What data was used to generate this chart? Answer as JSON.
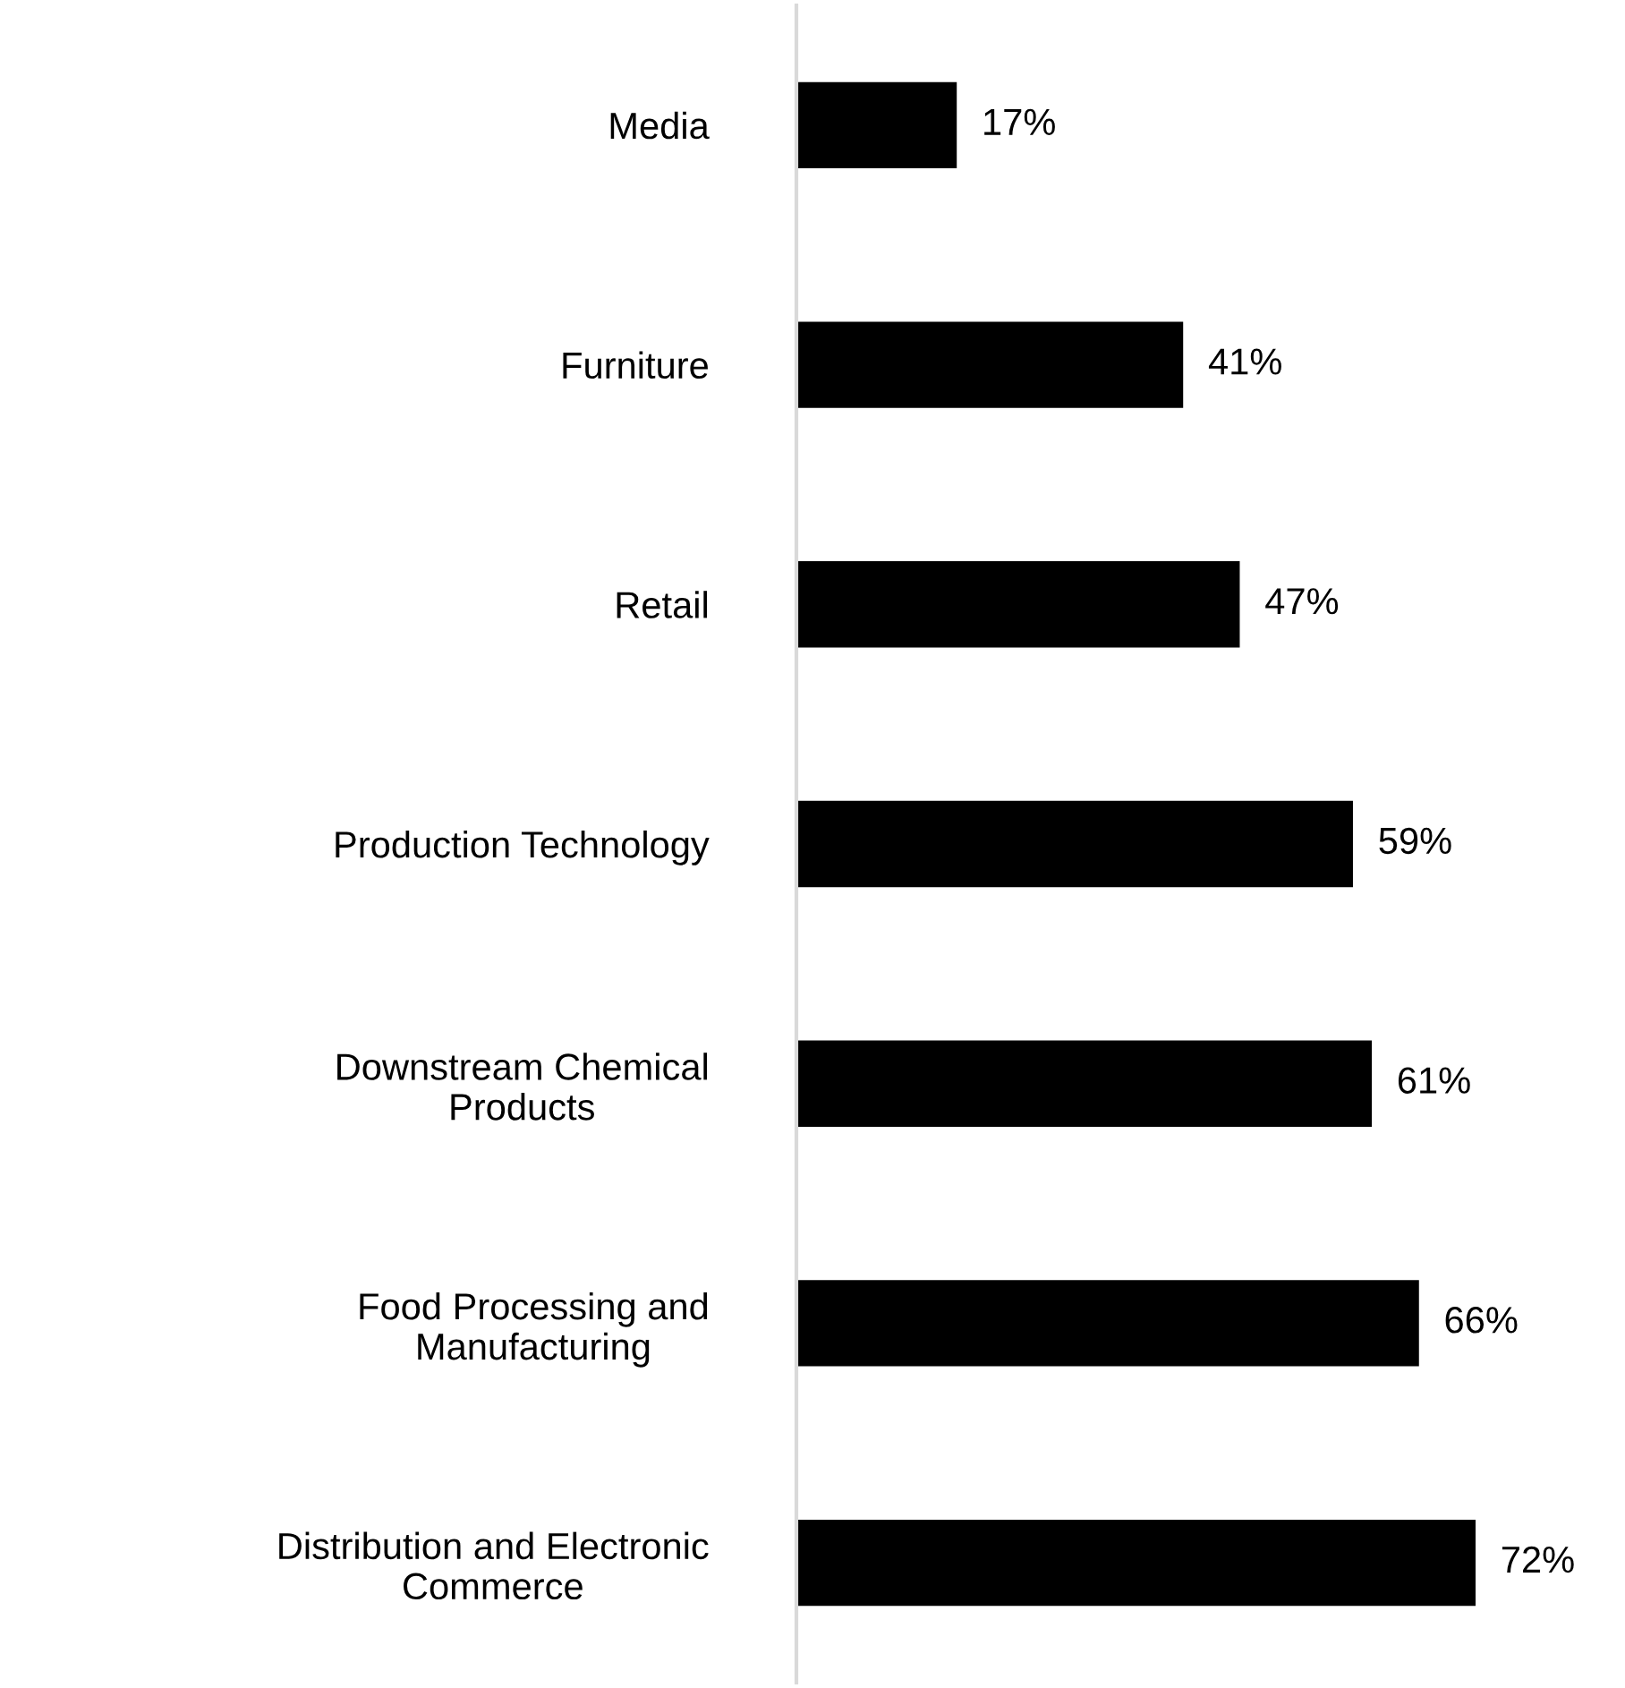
{
  "chart_data": {
    "type": "bar",
    "orientation": "horizontal",
    "categories": [
      "Media",
      "Furniture",
      "Retail",
      "Production Technology",
      "Downstream Chemical\nProducts",
      "Food Processing and\nManufacturing",
      "Distribution and Electronic\nCommerce"
    ],
    "values": [
      17,
      41,
      47,
      59,
      61,
      66,
      72
    ],
    "value_labels": [
      "17%",
      "41%",
      "47%",
      "59%",
      "61%",
      "66%",
      "72%"
    ],
    "color": "#000000",
    "tick_labels": "y",
    "grid": false,
    "legend": false
  }
}
